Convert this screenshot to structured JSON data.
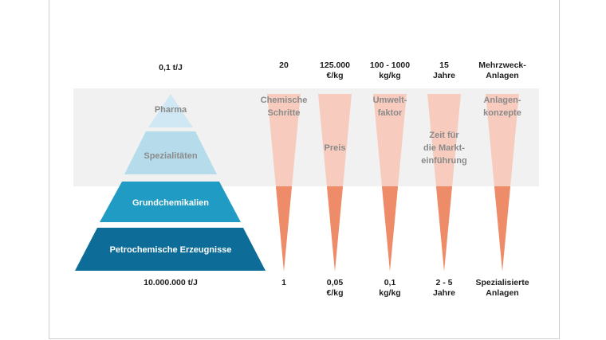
{
  "colors": {
    "band": "#f1f1f1",
    "pyramid_light": "#cfe8f3",
    "pyramid_lighter": "#b6dcec",
    "pyramid_mid": "#1f9bc4",
    "pyramid_dark": "#0e6c98",
    "triangle_pale": "#f8c5b5",
    "triangle_strong": "#ee8b68",
    "text_dark": "#1c1c1c",
    "text_grey": "#8a8a8a",
    "text_white": "#ffffff"
  },
  "pyramid": {
    "top_label": "0,1 t/J",
    "bottom_label": "10.000.000 t/J",
    "tiers": [
      {
        "label": "Pharma"
      },
      {
        "label": "Spezialitäten"
      },
      {
        "label": "Grundchemikalien"
      },
      {
        "label": "Petrochemische Erzeugnisse"
      }
    ]
  },
  "columns": [
    {
      "top": [
        "20"
      ],
      "inner": [
        "Chemische",
        "Schritte"
      ],
      "bottom": [
        "1"
      ]
    },
    {
      "top": [
        "125.000",
        "€/kg"
      ],
      "inner": [
        "Preis"
      ],
      "bottom": [
        "0,05",
        "€/kg"
      ]
    },
    {
      "top": [
        "100 - 1000",
        "kg/kg"
      ],
      "inner": [
        "Umwelt-",
        "faktor"
      ],
      "bottom": [
        "0,1",
        "kg/kg"
      ]
    },
    {
      "top": [
        "15",
        "Jahre"
      ],
      "inner": [
        "Zeit für",
        "die Markt-",
        "einführung"
      ],
      "bottom": [
        "2 - 5",
        "Jahre"
      ]
    },
    {
      "top": [
        "Mehrzweck-",
        "Anlagen"
      ],
      "inner": [
        "Anlagen-",
        "konzepte"
      ],
      "bottom": [
        "Spezialisierte",
        "Anlagen"
      ]
    }
  ]
}
